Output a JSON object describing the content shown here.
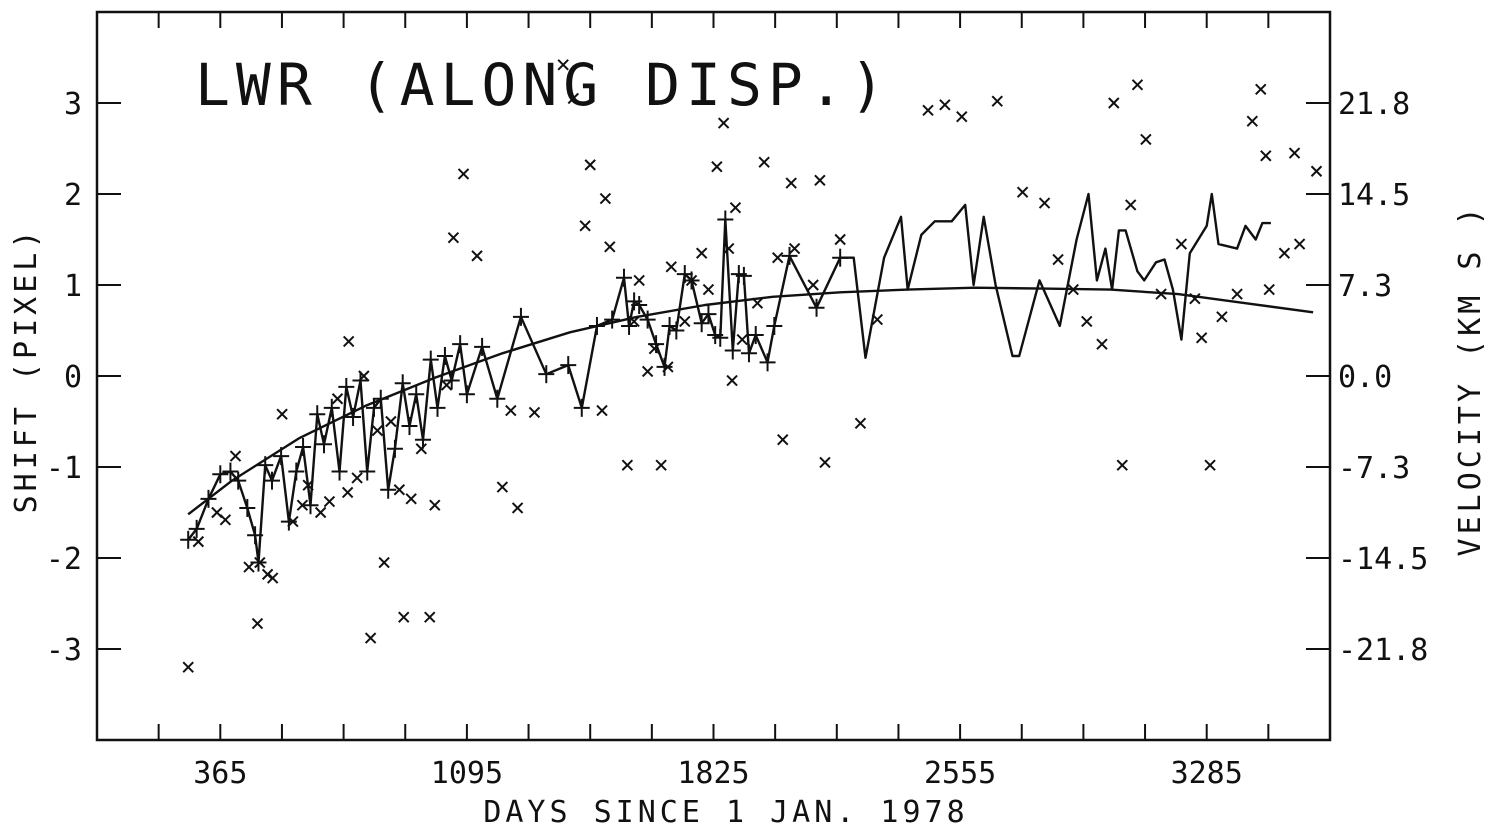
{
  "chart_data": {
    "type": "scatter",
    "title": "LWR (ALONG DISP.)",
    "xlabel": "DAYS SINCE 1 JAN. 1978",
    "ylabel": "SHIFT (PIXEL)",
    "y2label": "VELOCITY (KM S )",
    "xlim": [
      0,
      3650
    ],
    "ylim": [
      -4,
      4
    ],
    "x_ticks": [
      365,
      1095,
      1825,
      2555,
      3285
    ],
    "x_tick_labels": [
      "365",
      "1095",
      "1825",
      "2555",
      "3285"
    ],
    "y_ticks": [
      -3,
      -2,
      -1,
      0,
      1,
      2,
      3
    ],
    "y_tick_labels": [
      "-3",
      "-2",
      "-1",
      "0",
      "1",
      "2",
      "3"
    ],
    "y2_ticks": [
      -3,
      -2,
      -1,
      0,
      1,
      2,
      3
    ],
    "y2_tick_labels": [
      "-21.8",
      "-14.5",
      "-7.3",
      "0.0",
      "7.3",
      "14.5",
      "21.8"
    ],
    "grid": false,
    "series": [
      {
        "marker": "plus",
        "color": "#111111",
        "points": [
          [
            270,
            -1.8
          ],
          [
            295,
            -1.68
          ],
          [
            330,
            -1.35
          ],
          [
            365,
            -1.08
          ],
          [
            395,
            -1.05
          ],
          [
            418,
            -1.15
          ],
          [
            445,
            -1.45
          ],
          [
            468,
            -1.75
          ],
          [
            478,
            -2.05
          ],
          [
            498,
            -0.98
          ],
          [
            518,
            -1.15
          ],
          [
            545,
            -0.88
          ],
          [
            568,
            -1.6
          ],
          [
            590,
            -1.05
          ],
          [
            610,
            -0.78
          ],
          [
            632,
            -1.42
          ],
          [
            652,
            -0.42
          ],
          [
            672,
            -0.75
          ],
          [
            695,
            -0.35
          ],
          [
            718,
            -1.05
          ],
          [
            738,
            -0.12
          ],
          [
            758,
            -0.45
          ],
          [
            780,
            -0.05
          ],
          [
            800,
            -1.05
          ],
          [
            820,
            -0.35
          ],
          [
            840,
            -0.25
          ],
          [
            862,
            -1.25
          ],
          [
            882,
            -0.8
          ],
          [
            905,
            -0.08
          ],
          [
            925,
            -0.55
          ],
          [
            945,
            -0.2
          ],
          [
            965,
            -0.7
          ],
          [
            988,
            0.18
          ],
          [
            1008,
            -0.35
          ],
          [
            1030,
            0.22
          ],
          [
            1050,
            -0.05
          ],
          [
            1075,
            0.35
          ],
          [
            1095,
            -0.2
          ],
          [
            1140,
            0.32
          ],
          [
            1185,
            -0.25
          ],
          [
            1255,
            0.65
          ],
          [
            1330,
            0.02
          ],
          [
            1395,
            0.12
          ],
          [
            1435,
            -0.35
          ],
          [
            1480,
            0.55
          ],
          [
            1525,
            0.62
          ],
          [
            1560,
            1.08
          ],
          [
            1575,
            0.55
          ],
          [
            1590,
            0.82
          ],
          [
            1605,
            0.78
          ],
          [
            1630,
            0.62
          ],
          [
            1655,
            0.35
          ],
          [
            1680,
            0.1
          ],
          [
            1695,
            0.55
          ],
          [
            1715,
            0.5
          ],
          [
            1740,
            1.12
          ],
          [
            1760,
            1.05
          ],
          [
            1790,
            0.58
          ],
          [
            1810,
            0.68
          ],
          [
            1830,
            0.45
          ],
          [
            1845,
            0.42
          ],
          [
            1860,
            1.72
          ],
          [
            1882,
            0.28
          ],
          [
            1900,
            1.12
          ],
          [
            1915,
            1.1
          ],
          [
            1930,
            0.25
          ],
          [
            1950,
            0.45
          ],
          [
            1985,
            0.15
          ],
          [
            2005,
            0.55
          ],
          [
            2050,
            1.32
          ],
          [
            2130,
            0.75
          ],
          [
            2200,
            1.3
          ]
        ]
      },
      {
        "marker": "cross",
        "color": "#111111",
        "points": [
          [
            270,
            -3.2
          ],
          [
            300,
            -1.82
          ],
          [
            355,
            -1.5
          ],
          [
            380,
            -1.58
          ],
          [
            410,
            -0.88
          ],
          [
            450,
            -2.1
          ],
          [
            475,
            -2.72
          ],
          [
            482,
            -2.05
          ],
          [
            505,
            -2.18
          ],
          [
            520,
            -2.22
          ],
          [
            548,
            -0.42
          ],
          [
            580,
            -1.6
          ],
          [
            608,
            -1.42
          ],
          [
            625,
            -1.2
          ],
          [
            662,
            -1.5
          ],
          [
            688,
            -1.38
          ],
          [
            712,
            -0.25
          ],
          [
            742,
            -1.28
          ],
          [
            745,
            0.38
          ],
          [
            770,
            -1.12
          ],
          [
            790,
            0.0
          ],
          [
            810,
            -2.88
          ],
          [
            830,
            -0.6
          ],
          [
            850,
            -2.05
          ],
          [
            870,
            -0.5
          ],
          [
            895,
            -1.25
          ],
          [
            908,
            -2.65
          ],
          [
            930,
            -1.35
          ],
          [
            960,
            -0.8
          ],
          [
            985,
            -2.65
          ],
          [
            1000,
            -1.42
          ],
          [
            1035,
            -0.1
          ],
          [
            1055,
            1.52
          ],
          [
            1085,
            2.22
          ],
          [
            1125,
            1.32
          ],
          [
            1200,
            -1.22
          ],
          [
            1225,
            -0.38
          ],
          [
            1245,
            -1.45
          ],
          [
            1295,
            -0.4
          ],
          [
            1380,
            3.42
          ],
          [
            1410,
            3.05
          ],
          [
            1445,
            1.65
          ],
          [
            1460,
            2.32
          ],
          [
            1495,
            -0.38
          ],
          [
            1505,
            1.95
          ],
          [
            1518,
            1.42
          ],
          [
            1570,
            -0.98
          ],
          [
            1590,
            0.6
          ],
          [
            1605,
            1.05
          ],
          [
            1630,
            0.05
          ],
          [
            1650,
            0.3
          ],
          [
            1670,
            -0.98
          ],
          [
            1690,
            0.1
          ],
          [
            1700,
            1.2
          ],
          [
            1740,
            0.6
          ],
          [
            1760,
            1.05
          ],
          [
            1790,
            1.35
          ],
          [
            1810,
            0.95
          ],
          [
            1835,
            2.3
          ],
          [
            1855,
            2.78
          ],
          [
            1870,
            1.4
          ],
          [
            1880,
            -0.05
          ],
          [
            1890,
            1.85
          ],
          [
            1910,
            0.4
          ],
          [
            1955,
            0.8
          ],
          [
            1975,
            2.35
          ],
          [
            2015,
            1.3
          ],
          [
            2030,
            -0.7
          ],
          [
            2055,
            2.12
          ],
          [
            2065,
            1.4
          ],
          [
            2120,
            1.0
          ],
          [
            2140,
            2.15
          ],
          [
            2155,
            -0.95
          ],
          [
            2200,
            1.5
          ],
          [
            2260,
            -0.52
          ],
          [
            2310,
            0.62
          ],
          [
            2460,
            2.92
          ],
          [
            2510,
            2.98
          ],
          [
            2560,
            2.85
          ],
          [
            2665,
            3.02
          ],
          [
            2740,
            2.02
          ],
          [
            2805,
            1.9
          ],
          [
            2845,
            1.28
          ],
          [
            2890,
            0.95
          ],
          [
            2930,
            0.6
          ],
          [
            2975,
            0.35
          ],
          [
            3010,
            3.0
          ],
          [
            3035,
            -0.98
          ],
          [
            3060,
            1.88
          ],
          [
            3080,
            3.2
          ],
          [
            3105,
            2.6
          ],
          [
            3150,
            0.9
          ],
          [
            3210,
            1.45
          ],
          [
            3250,
            0.85
          ],
          [
            3270,
            0.42
          ],
          [
            3295,
            -0.98
          ],
          [
            3330,
            0.65
          ],
          [
            3375,
            0.9
          ],
          [
            3420,
            2.8
          ],
          [
            3445,
            3.15
          ],
          [
            3460,
            2.42
          ],
          [
            3470,
            0.95
          ],
          [
            3515,
            1.35
          ],
          [
            3545,
            2.45
          ],
          [
            3560,
            1.45
          ],
          [
            3610,
            2.25
          ]
        ]
      },
      {
        "style": "line",
        "color": "#111111",
        "points": [
          [
            270,
            -1.8
          ],
          [
            295,
            -1.68
          ],
          [
            330,
            -1.35
          ],
          [
            365,
            -1.08
          ],
          [
            395,
            -1.05
          ],
          [
            418,
            -1.15
          ],
          [
            445,
            -1.45
          ],
          [
            468,
            -1.75
          ],
          [
            478,
            -2.05
          ],
          [
            498,
            -0.98
          ],
          [
            518,
            -1.15
          ],
          [
            545,
            -0.88
          ],
          [
            568,
            -1.6
          ],
          [
            590,
            -1.05
          ],
          [
            610,
            -0.78
          ],
          [
            632,
            -1.42
          ],
          [
            652,
            -0.42
          ],
          [
            672,
            -0.75
          ],
          [
            695,
            -0.35
          ],
          [
            718,
            -1.05
          ],
          [
            738,
            -0.12
          ],
          [
            758,
            -0.45
          ],
          [
            780,
            -0.05
          ],
          [
            800,
            -1.05
          ],
          [
            820,
            -0.35
          ],
          [
            840,
            -0.25
          ],
          [
            862,
            -1.25
          ],
          [
            882,
            -0.8
          ],
          [
            905,
            -0.08
          ],
          [
            925,
            -0.55
          ],
          [
            945,
            -0.2
          ],
          [
            965,
            -0.7
          ],
          [
            988,
            0.18
          ],
          [
            1008,
            -0.35
          ],
          [
            1030,
            0.22
          ],
          [
            1050,
            -0.05
          ],
          [
            1075,
            0.35
          ],
          [
            1095,
            -0.2
          ],
          [
            1140,
            0.32
          ],
          [
            1185,
            -0.25
          ],
          [
            1255,
            0.65
          ],
          [
            1330,
            0.02
          ],
          [
            1395,
            0.12
          ],
          [
            1435,
            -0.35
          ],
          [
            1480,
            0.55
          ],
          [
            1525,
            0.62
          ],
          [
            1560,
            1.08
          ],
          [
            1575,
            0.55
          ],
          [
            1590,
            0.82
          ],
          [
            1605,
            0.78
          ],
          [
            1630,
            0.62
          ],
          [
            1655,
            0.35
          ],
          [
            1680,
            0.1
          ],
          [
            1695,
            0.55
          ],
          [
            1715,
            0.5
          ],
          [
            1740,
            1.12
          ],
          [
            1760,
            1.05
          ],
          [
            1790,
            0.58
          ],
          [
            1810,
            0.68
          ],
          [
            1830,
            0.45
          ],
          [
            1845,
            0.42
          ],
          [
            1860,
            1.72
          ],
          [
            1882,
            0.28
          ],
          [
            1900,
            1.12
          ],
          [
            1915,
            1.1
          ],
          [
            1930,
            0.25
          ],
          [
            1950,
            0.45
          ],
          [
            1985,
            0.15
          ],
          [
            2005,
            0.55
          ],
          [
            2050,
            1.32
          ],
          [
            2130,
            0.75
          ],
          [
            2200,
            1.3
          ],
          [
            2240,
            1.3
          ],
          [
            2275,
            0.2
          ],
          [
            2330,
            1.3
          ],
          [
            2380,
            1.75
          ],
          [
            2400,
            0.95
          ],
          [
            2440,
            1.55
          ],
          [
            2480,
            1.7
          ],
          [
            2530,
            1.7
          ],
          [
            2570,
            1.88
          ],
          [
            2595,
            1.0
          ],
          [
            2625,
            1.75
          ],
          [
            2660,
            1.0
          ],
          [
            2710,
            0.22
          ],
          [
            2730,
            0.22
          ],
          [
            2790,
            1.05
          ],
          [
            2850,
            0.55
          ],
          [
            2900,
            1.5
          ],
          [
            2935,
            2.0
          ],
          [
            2960,
            1.05
          ],
          [
            2985,
            1.4
          ],
          [
            3005,
            0.95
          ],
          [
            3025,
            1.6
          ],
          [
            3045,
            1.6
          ],
          [
            3080,
            1.15
          ],
          [
            3100,
            1.05
          ],
          [
            3135,
            1.25
          ],
          [
            3160,
            1.28
          ],
          [
            3185,
            0.95
          ],
          [
            3210,
            0.4
          ],
          [
            3235,
            1.35
          ],
          [
            3285,
            1.65
          ],
          [
            3300,
            2.0
          ],
          [
            3320,
            1.45
          ],
          [
            3375,
            1.4
          ],
          [
            3400,
            1.65
          ],
          [
            3430,
            1.5
          ],
          [
            3450,
            1.68
          ],
          [
            3475,
            1.68
          ]
        ]
      },
      {
        "style": "smooth-curve",
        "color": "#111111",
        "points": [
          [
            270,
            -1.52
          ],
          [
            400,
            -1.15
          ],
          [
            600,
            -0.68
          ],
          [
            800,
            -0.32
          ],
          [
            1000,
            -0.02
          ],
          [
            1200,
            0.25
          ],
          [
            1400,
            0.48
          ],
          [
            1600,
            0.65
          ],
          [
            1800,
            0.78
          ],
          [
            2000,
            0.87
          ],
          [
            2200,
            0.92
          ],
          [
            2400,
            0.95
          ],
          [
            2600,
            0.97
          ],
          [
            2800,
            0.96
          ],
          [
            3000,
            0.95
          ],
          [
            3200,
            0.9
          ],
          [
            3400,
            0.8
          ],
          [
            3600,
            0.7
          ]
        ]
      }
    ]
  }
}
